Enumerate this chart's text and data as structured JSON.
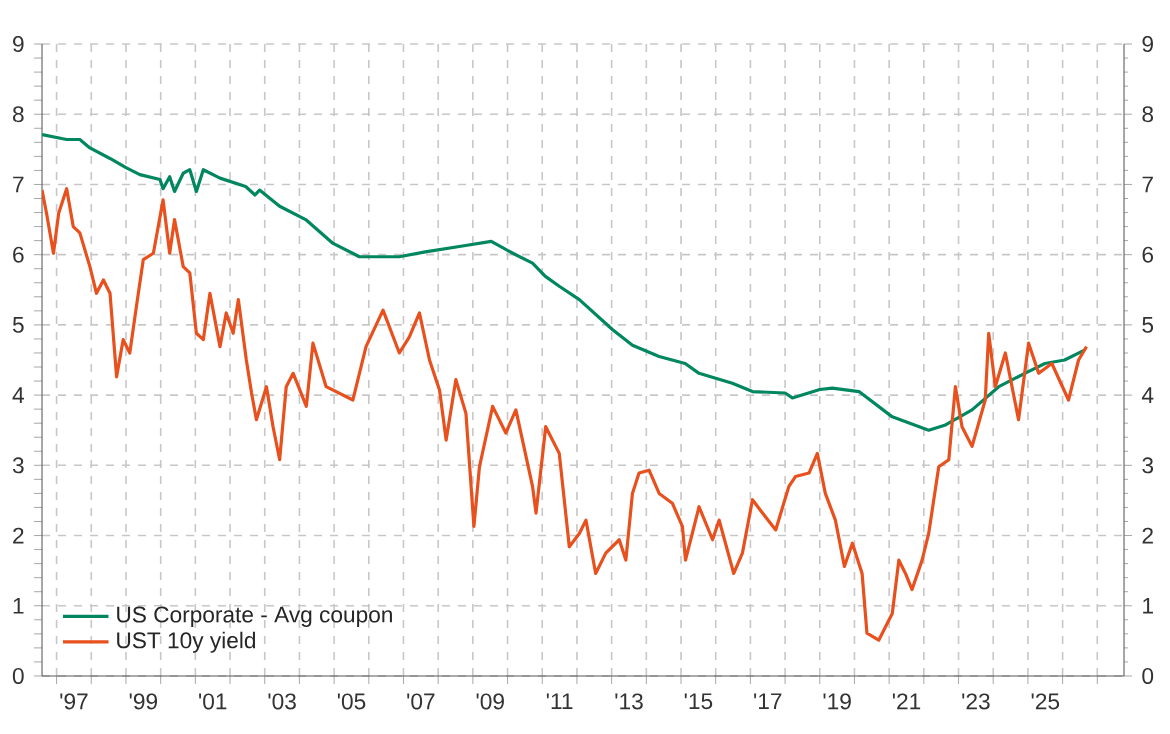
{
  "chart_data": {
    "type": "line",
    "xlim": [
      1996.08,
      2027.27
    ],
    "xticks": [
      {
        "value": 1996.5,
        "label": null
      },
      {
        "value": 1997,
        "label": "'97"
      },
      {
        "value": 1997.5,
        "label": null
      },
      {
        "value": 1998.5,
        "label": null
      },
      {
        "value": 1999,
        "label": "'99"
      },
      {
        "value": 1999.5,
        "label": null
      },
      {
        "value": 2000.5,
        "label": null
      },
      {
        "value": 2001,
        "label": "'01"
      },
      {
        "value": 2001.5,
        "label": null
      },
      {
        "value": 2002.5,
        "label": null
      },
      {
        "value": 2003,
        "label": "'03"
      },
      {
        "value": 2003.5,
        "label": null
      },
      {
        "value": 2004.5,
        "label": null
      },
      {
        "value": 2005,
        "label": "'05"
      },
      {
        "value": 2005.5,
        "label": null
      },
      {
        "value": 2006.5,
        "label": null
      },
      {
        "value": 2007,
        "label": "'07"
      },
      {
        "value": 2007.5,
        "label": null
      },
      {
        "value": 2008.5,
        "label": null
      },
      {
        "value": 2009,
        "label": "'09"
      },
      {
        "value": 2009.5,
        "label": null
      },
      {
        "value": 2010.5,
        "label": null
      },
      {
        "value": 2011,
        "label": "'11"
      },
      {
        "value": 2011.5,
        "label": null
      },
      {
        "value": 2012.5,
        "label": null
      },
      {
        "value": 2013,
        "label": "'13"
      },
      {
        "value": 2013.5,
        "label": null
      },
      {
        "value": 2014.5,
        "label": null
      },
      {
        "value": 2015,
        "label": "'15"
      },
      {
        "value": 2015.5,
        "label": null
      },
      {
        "value": 2016.5,
        "label": null
      },
      {
        "value": 2017,
        "label": "'17"
      },
      {
        "value": 2017.5,
        "label": null
      },
      {
        "value": 2018.5,
        "label": null
      },
      {
        "value": 2019,
        "label": "'19"
      },
      {
        "value": 2019.5,
        "label": null
      },
      {
        "value": 2020.5,
        "label": null
      },
      {
        "value": 2021,
        "label": "'21"
      },
      {
        "value": 2021.5,
        "label": null
      },
      {
        "value": 2022.5,
        "label": null
      },
      {
        "value": 2023,
        "label": "'23"
      },
      {
        "value": 2023.5,
        "label": null
      },
      {
        "value": 2024.5,
        "label": null
      },
      {
        "value": 2025,
        "label": "'25"
      },
      {
        "value": 2025.5,
        "label": null
      },
      {
        "value": 2026.5,
        "label": null
      }
    ],
    "ylim": [
      0,
      9
    ],
    "yticks": [
      0,
      1,
      2,
      3,
      4,
      5,
      6,
      7,
      8,
      9
    ],
    "y2lim": [
      0,
      9
    ],
    "y2ticks": [
      0,
      1,
      2,
      3,
      4,
      5,
      6,
      7,
      8,
      9
    ],
    "grid": true,
    "legend": "bottom left",
    "line_style": "solid",
    "marker": "none",
    "series": [
      {
        "name": "US Corporate - Avg coupon",
        "color": "#00875f",
        "x": [
          1996.08,
          1996.79,
          1997.17,
          1997.46,
          1998.04,
          1998.5,
          1998.9,
          1999.48,
          1999.57,
          1999.76,
          1999.9,
          2000.15,
          2000.34,
          2000.53,
          2000.73,
          2001.21,
          2001.95,
          2002.22,
          2002.35,
          2002.93,
          2003.68,
          2004.47,
          2005.23,
          2006.38,
          2007.13,
          2008.29,
          2009.03,
          2009.65,
          2010.22,
          2010.59,
          2010.99,
          2011.57,
          2012.53,
          2013.1,
          2013.87,
          2014.62,
          2015.02,
          2015.98,
          2016.56,
          2017.5,
          2017.71,
          2018.5,
          2018.86,
          2019.63,
          2020.59,
          2021.64,
          2022.1,
          2022.89,
          2023.66,
          2024.41,
          2024.99,
          2025.56,
          2026.13
        ],
        "values": [
          7.71,
          7.64,
          7.64,
          7.52,
          7.37,
          7.24,
          7.14,
          7.07,
          6.94,
          7.11,
          6.9,
          7.16,
          7.21,
          6.9,
          7.21,
          7.09,
          6.97,
          6.85,
          6.92,
          6.69,
          6.5,
          6.16,
          5.97,
          5.97,
          6.04,
          6.13,
          6.19,
          6.02,
          5.88,
          5.69,
          5.55,
          5.36,
          4.93,
          4.71,
          4.55,
          4.45,
          4.31,
          4.17,
          4.05,
          4.03,
          3.96,
          4.08,
          4.1,
          4.05,
          3.69,
          3.5,
          3.57,
          3.79,
          4.12,
          4.31,
          4.45,
          4.5,
          4.64
        ]
      },
      {
        "name": "UST 10y yield",
        "color": "#e8501e",
        "x": [
          1996.08,
          1996.21,
          1996.41,
          1996.56,
          1996.79,
          1996.98,
          1997.17,
          1997.46,
          1997.65,
          1997.85,
          1998.04,
          1998.23,
          1998.42,
          1998.61,
          1998.8,
          1999.0,
          1999.29,
          1999.57,
          1999.76,
          1999.9,
          2000.15,
          2000.34,
          2000.53,
          2000.73,
          2000.92,
          2001.21,
          2001.39,
          2001.59,
          2001.74,
          2001.97,
          2002.12,
          2002.26,
          2002.55,
          2002.74,
          2002.93,
          2003.12,
          2003.32,
          2003.7,
          2003.89,
          2004.27,
          2005.04,
          2005.42,
          2005.91,
          2006.38,
          2006.67,
          2006.96,
          2007.25,
          2007.54,
          2007.73,
          2008.01,
          2008.3,
          2008.53,
          2008.69,
          2009.07,
          2009.45,
          2009.74,
          2010.22,
          2010.32,
          2010.6,
          2010.99,
          2011.28,
          2011.57,
          2011.76,
          2012.04,
          2012.33,
          2012.72,
          2012.91,
          2013.1,
          2013.29,
          2013.58,
          2013.87,
          2014.25,
          2014.54,
          2014.63,
          2015.02,
          2015.41,
          2015.6,
          2016.02,
          2016.27,
          2016.56,
          2016.85,
          2017.23,
          2017.61,
          2017.8,
          2018.19,
          2018.43,
          2018.66,
          2018.95,
          2019.21,
          2019.44,
          2019.72,
          2019.86,
          2020.2,
          2020.59,
          2020.78,
          2020.97,
          2021.16,
          2021.45,
          2021.64,
          2021.93,
          2022.22,
          2022.41,
          2022.6,
          2022.89,
          2023.27,
          2023.37,
          2023.56,
          2023.85,
          2024.23,
          2024.52,
          2024.81,
          2025.19,
          2025.67,
          2025.96,
          2026.19
        ],
        "values": [
          6.92,
          6.59,
          6.02,
          6.59,
          6.94,
          6.4,
          6.31,
          5.83,
          5.45,
          5.64,
          5.45,
          4.26,
          4.79,
          4.6,
          5.26,
          5.93,
          6.02,
          6.78,
          6.02,
          6.5,
          5.83,
          5.74,
          4.88,
          4.79,
          5.45,
          4.69,
          5.17,
          4.88,
          5.36,
          4.5,
          4.03,
          3.65,
          4.12,
          3.55,
          3.08,
          4.12,
          4.31,
          3.84,
          4.74,
          4.12,
          3.93,
          4.69,
          5.21,
          4.6,
          4.83,
          5.17,
          4.5,
          4.07,
          3.36,
          4.22,
          3.74,
          2.13,
          2.98,
          3.84,
          3.46,
          3.79,
          2.7,
          2.32,
          3.55,
          3.17,
          1.84,
          2.03,
          2.22,
          1.46,
          1.75,
          1.94,
          1.65,
          2.6,
          2.89,
          2.93,
          2.6,
          2.46,
          2.13,
          1.65,
          2.41,
          1.94,
          2.22,
          1.46,
          1.75,
          2.51,
          2.32,
          2.08,
          2.7,
          2.84,
          2.89,
          3.17,
          2.6,
          2.22,
          1.56,
          1.89,
          1.46,
          0.61,
          0.51,
          0.89,
          1.65,
          1.46,
          1.23,
          1.65,
          2.03,
          2.98,
          3.08,
          4.12,
          3.55,
          3.27,
          3.93,
          4.88,
          4.12,
          4.6,
          3.65,
          4.74,
          4.31,
          4.45,
          3.93,
          4.5,
          4.69
        ]
      }
    ]
  }
}
